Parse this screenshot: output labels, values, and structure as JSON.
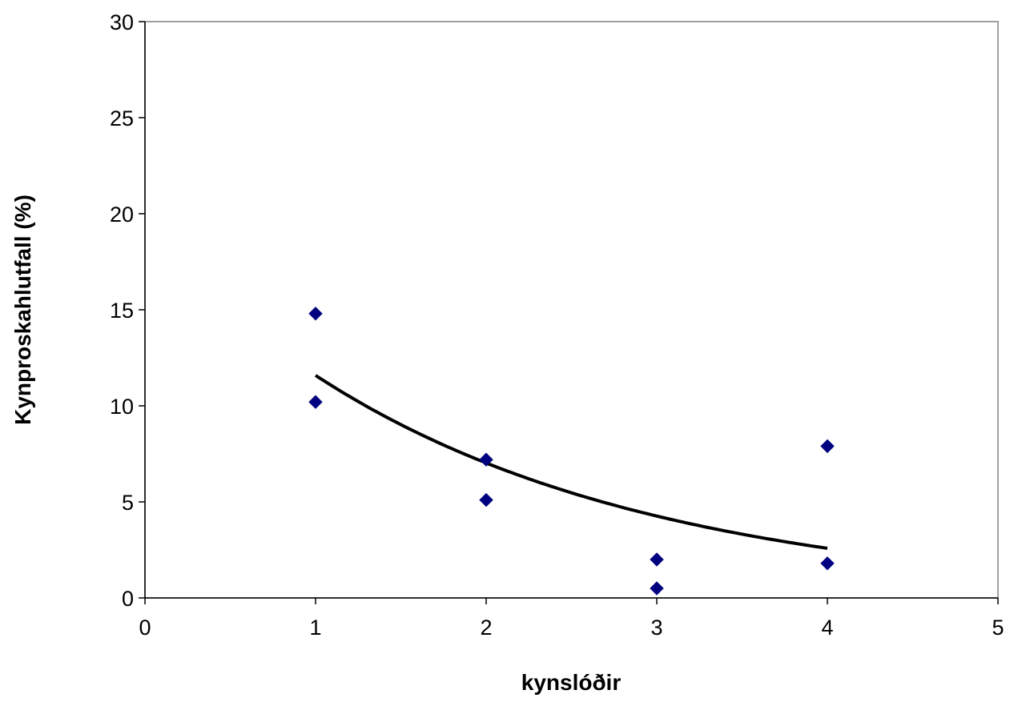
{
  "chart_data": {
    "type": "scatter",
    "title": "",
    "xlabel": "kynslóðir",
    "ylabel": "Kynproskahlutfall (%)",
    "xlim": [
      0,
      5
    ],
    "ylim": [
      0,
      30
    ],
    "xticks": [
      0,
      1,
      2,
      3,
      4,
      5
    ],
    "yticks": [
      0,
      5,
      10,
      15,
      20,
      25,
      30
    ],
    "grid": false,
    "legend": "none",
    "series": [
      {
        "marker": "diamond",
        "color": "#000080",
        "points": [
          {
            "x": 1,
            "y": 14.8
          },
          {
            "x": 1,
            "y": 10.2
          },
          {
            "x": 2,
            "y": 7.2
          },
          {
            "x": 2,
            "y": 5.1
          },
          {
            "x": 3,
            "y": 2.0
          },
          {
            "x": 3,
            "y": 0.5
          },
          {
            "x": 4,
            "y": 7.9
          },
          {
            "x": 4,
            "y": 1.8
          }
        ]
      }
    ],
    "trendline": {
      "type": "exponential",
      "color": "#000000",
      "x_range": [
        1,
        4
      ],
      "a": 19.1,
      "b": -0.5
    }
  }
}
